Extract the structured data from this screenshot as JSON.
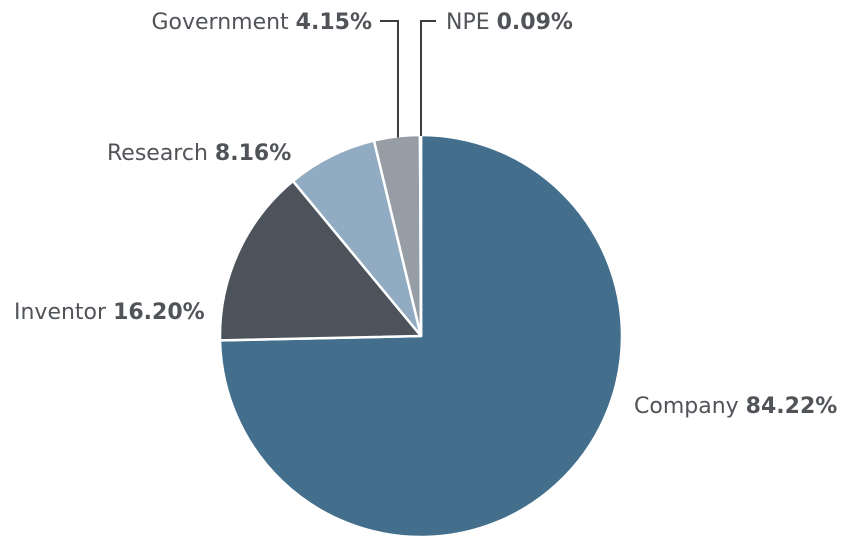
{
  "chart_data": {
    "type": "pie",
    "title": "",
    "slices": [
      {
        "label": "Company",
        "value": 84.22,
        "value_text": "84.22%",
        "color": "#436e8c"
      },
      {
        "label": "Inventor",
        "value": 16.2,
        "value_text": "16.20%",
        "color": "#4c535b"
      },
      {
        "label": "Research",
        "value": 8.16,
        "value_text": "8.16%",
        "color": "#91acc2"
      },
      {
        "label": "Government",
        "value": 4.15,
        "value_text": "4.15%",
        "color": "#979da5"
      },
      {
        "label": "NPE",
        "value": 0.09,
        "value_text": "0.09%",
        "color": "#d6dadf"
      }
    ],
    "start_angle": "12 o'clock",
    "direction": "clockwise",
    "legend": "none",
    "slice_border_color": "#ffffff"
  }
}
